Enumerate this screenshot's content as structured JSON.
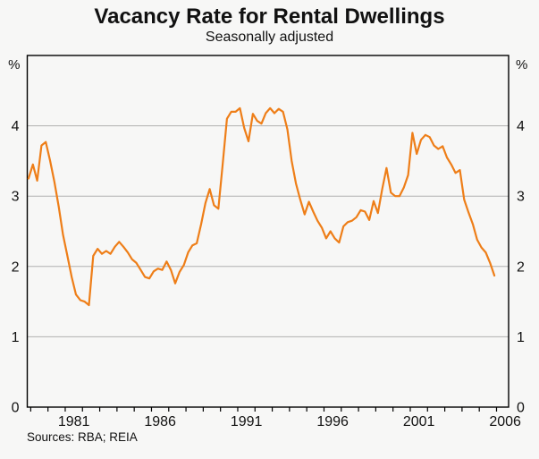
{
  "page": {
    "title": "Vacancy Rate for Rental Dwellings",
    "subtitle": "Seasonally adjusted",
    "sources": "Sources: RBA; REIA"
  },
  "chart_data": {
    "type": "line",
    "title": "Vacancy Rate for Rental Dwellings",
    "subtitle": "Seasonally adjusted",
    "y_unit": "%",
    "ylabel": "",
    "xlabel": "",
    "ylim": [
      0,
      5
    ],
    "y_ticks": [
      0,
      1,
      2,
      3,
      4
    ],
    "y_gridlines": [
      1,
      2,
      3,
      4
    ],
    "xlim": [
      1978.8,
      2006.7
    ],
    "x_labeled_years": [
      1981,
      1986,
      1991,
      1996,
      2001,
      2006
    ],
    "x_minor_ticks": {
      "start": 1979,
      "end": 2006,
      "step": 1
    },
    "grid": "horizontal-only",
    "legend": "none",
    "sources": "Sources: RBA; REIA",
    "series": [
      {
        "name": "Rental dwelling vacancy rate (seasonally adjusted)",
        "frequency": "quarterly",
        "color": "#EE7E18",
        "x_start": 1978.875,
        "x_step": 0.25,
        "values": [
          3.25,
          3.45,
          3.22,
          3.72,
          3.77,
          3.5,
          3.2,
          2.85,
          2.45,
          2.15,
          1.85,
          1.6,
          1.52,
          1.5,
          1.45,
          2.15,
          2.25,
          2.18,
          2.22,
          2.18,
          2.28,
          2.35,
          2.28,
          2.2,
          2.1,
          2.05,
          1.95,
          1.85,
          1.83,
          1.93,
          1.97,
          1.95,
          2.07,
          1.95,
          1.76,
          1.92,
          2.02,
          2.2,
          2.3,
          2.33,
          2.6,
          2.9,
          3.1,
          2.87,
          2.82,
          3.45,
          4.1,
          4.2,
          4.2,
          4.25,
          3.97,
          3.78,
          4.17,
          4.07,
          4.03,
          4.18,
          4.25,
          4.18,
          4.24,
          4.2,
          3.95,
          3.5,
          3.18,
          2.95,
          2.74,
          2.92,
          2.78,
          2.65,
          2.55,
          2.4,
          2.5,
          2.4,
          2.34,
          2.57,
          2.63,
          2.65,
          2.7,
          2.8,
          2.78,
          2.66,
          2.93,
          2.76,
          3.1,
          3.4,
          3.05,
          3.0,
          3.0,
          3.12,
          3.3,
          3.9,
          3.6,
          3.8,
          3.87,
          3.84,
          3.72,
          3.67,
          3.71,
          3.55,
          3.45,
          3.33,
          3.37,
          2.95,
          2.77,
          2.6,
          2.38,
          2.27,
          2.2,
          2.05,
          1.87
        ]
      }
    ]
  }
}
